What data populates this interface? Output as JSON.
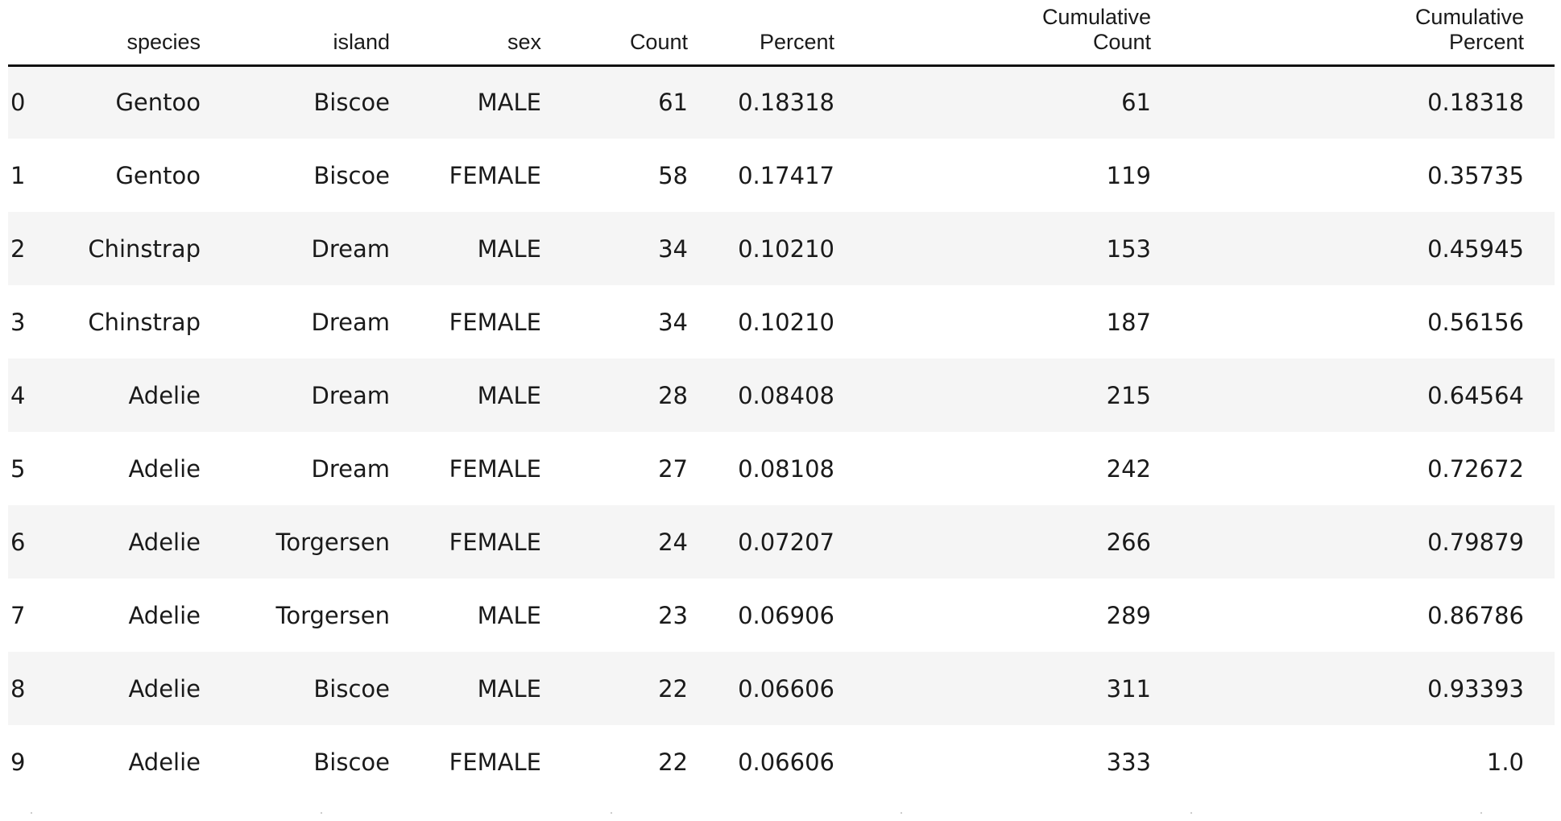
{
  "columns": {
    "index": "",
    "species": "species",
    "island": "island",
    "sex": "sex",
    "count": "Count",
    "percent": "Percent",
    "cum_count_1": "Cumulative",
    "cum_count_2": "Count",
    "cum_pct_1": "Cumulative",
    "cum_pct_2": "Percent"
  },
  "rows": [
    {
      "idx": "0",
      "species": "Gentoo",
      "island": "Biscoe",
      "sex": "MALE",
      "count": "61",
      "percent": "0.18318",
      "cum_count": "61",
      "cum_pct": "0.18318"
    },
    {
      "idx": "1",
      "species": "Gentoo",
      "island": "Biscoe",
      "sex": "FEMALE",
      "count": "58",
      "percent": "0.17417",
      "cum_count": "119",
      "cum_pct": "0.35735"
    },
    {
      "idx": "2",
      "species": "Chinstrap",
      "island": "Dream",
      "sex": "MALE",
      "count": "34",
      "percent": "0.10210",
      "cum_count": "153",
      "cum_pct": "0.45945"
    },
    {
      "idx": "3",
      "species": "Chinstrap",
      "island": "Dream",
      "sex": "FEMALE",
      "count": "34",
      "percent": "0.10210",
      "cum_count": "187",
      "cum_pct": "0.56156"
    },
    {
      "idx": "4",
      "species": "Adelie",
      "island": "Dream",
      "sex": "MALE",
      "count": "28",
      "percent": "0.08408",
      "cum_count": "215",
      "cum_pct": "0.64564"
    },
    {
      "idx": "5",
      "species": "Adelie",
      "island": "Dream",
      "sex": "FEMALE",
      "count": "27",
      "percent": "0.08108",
      "cum_count": "242",
      "cum_pct": "0.72672"
    },
    {
      "idx": "6",
      "species": "Adelie",
      "island": "Torgersen",
      "sex": "FEMALE",
      "count": "24",
      "percent": "0.07207",
      "cum_count": "266",
      "cum_pct": "0.79879"
    },
    {
      "idx": "7",
      "species": "Adelie",
      "island": "Torgersen",
      "sex": "MALE",
      "count": "23",
      "percent": "0.06906",
      "cum_count": "289",
      "cum_pct": "0.86786"
    },
    {
      "idx": "8",
      "species": "Adelie",
      "island": "Biscoe",
      "sex": "MALE",
      "count": "22",
      "percent": "0.06606",
      "cum_count": "311",
      "cum_pct": "0.93393"
    },
    {
      "idx": "9",
      "species": "Adelie",
      "island": "Biscoe",
      "sex": "FEMALE",
      "count": "22",
      "percent": "0.06606",
      "cum_count": "333",
      "cum_pct": "1.0"
    }
  ]
}
